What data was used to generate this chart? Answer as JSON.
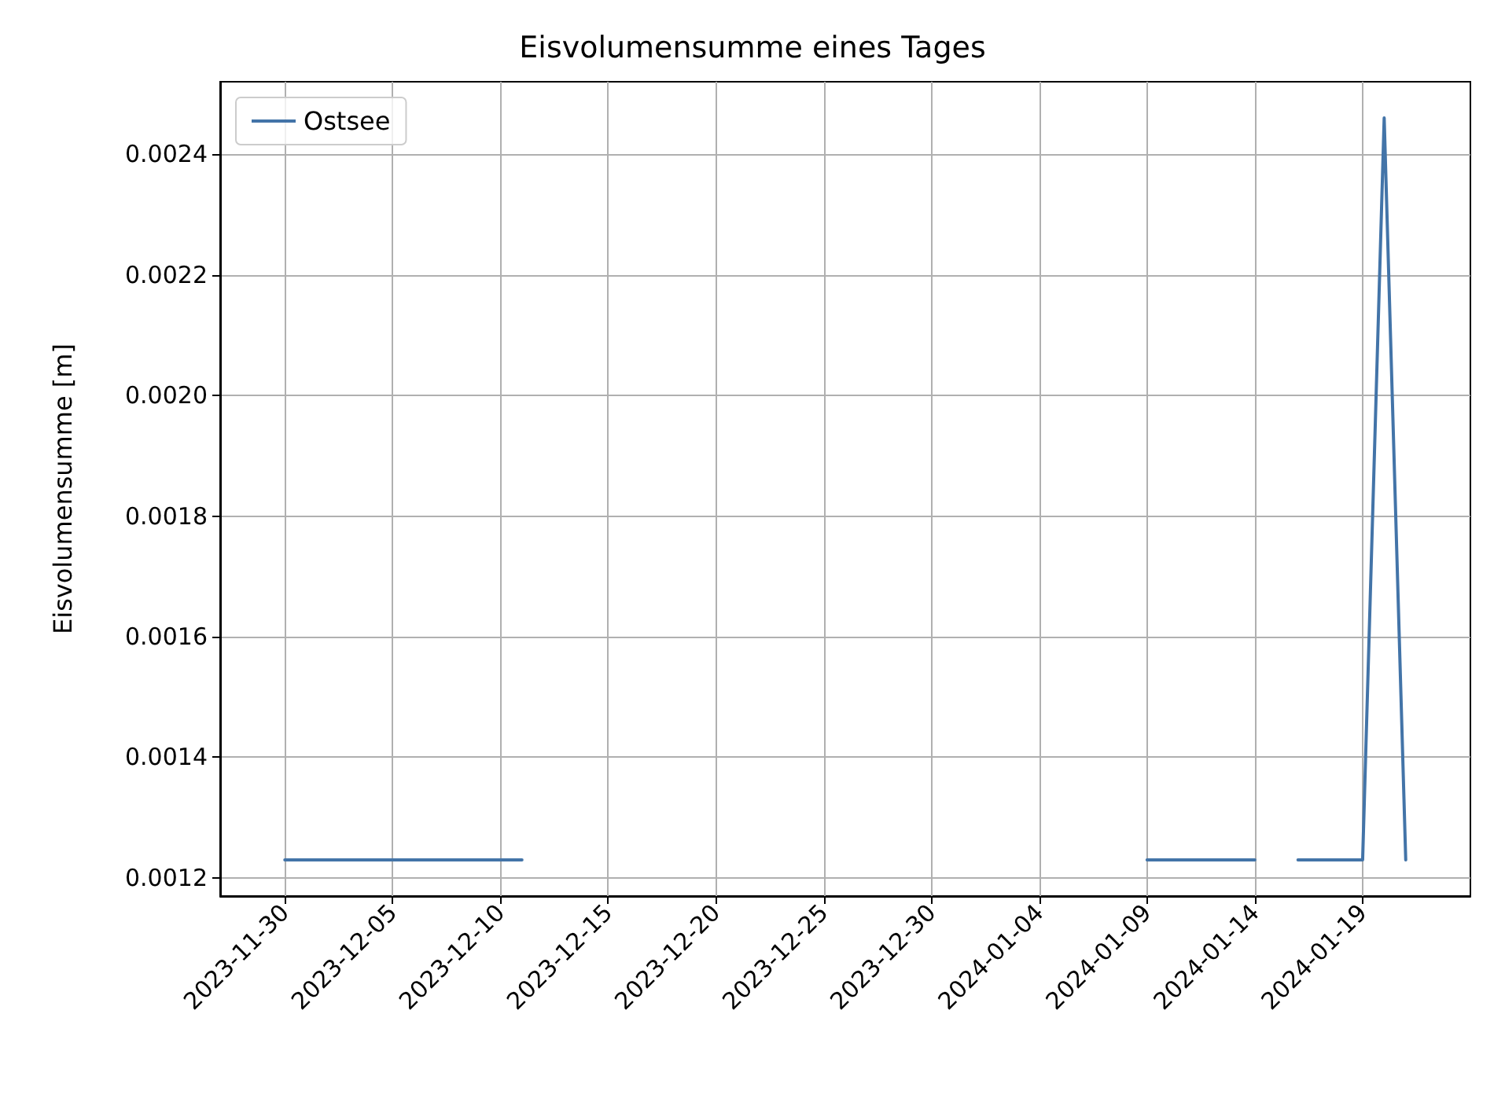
{
  "chart_data": {
    "type": "line",
    "title": "Eisvolumensumme eines Tages",
    "ylabel": "Eisvolumensumme [m]",
    "x": [
      "2023-11-30",
      "2023-12-01",
      "2023-12-02",
      "2023-12-03",
      "2023-12-04",
      "2023-12-05",
      "2023-12-06",
      "2023-12-07",
      "2023-12-08",
      "2023-12-09",
      "2023-12-10",
      "2023-12-11",
      "2023-12-12",
      "2024-01-08",
      "2024-01-09",
      "2024-01-10",
      "2024-01-11",
      "2024-01-12",
      "2024-01-13",
      "2024-01-14",
      "2024-01-15",
      "2024-01-16",
      "2024-01-17",
      "2024-01-18",
      "2024-01-19",
      "2024-01-20",
      "2024-01-21"
    ],
    "series": [
      {
        "name": "Ostsee",
        "color": "#4374a8",
        "values": [
          0.00123,
          0.00123,
          0.00123,
          0.00123,
          0.00123,
          0.00123,
          0.00123,
          0.00123,
          0.00123,
          0.00123,
          0.00123,
          0.00123,
          null,
          null,
          0.00123,
          0.00123,
          0.00123,
          0.00123,
          0.00123,
          0.00123,
          null,
          0.00123,
          0.00123,
          0.00123,
          0.00123,
          0.00246,
          0.00123
        ]
      }
    ],
    "xlim": [
      "2023-11-27",
      "2024-01-24"
    ],
    "xticks": [
      "2023-11-30",
      "2023-12-05",
      "2023-12-10",
      "2023-12-15",
      "2023-12-20",
      "2023-12-25",
      "2023-12-30",
      "2024-01-04",
      "2024-01-09",
      "2024-01-14",
      "2024-01-19"
    ],
    "ylim": [
      0.00117,
      0.00252
    ],
    "yticks": [
      {
        "value": 0.0012,
        "label": "0.0012"
      },
      {
        "value": 0.0014,
        "label": "0.0014"
      },
      {
        "value": 0.0016,
        "label": "0.0016"
      },
      {
        "value": 0.0018,
        "label": "0.0018"
      },
      {
        "value": 0.002,
        "label": "0.0020"
      },
      {
        "value": 0.0022,
        "label": "0.0022"
      },
      {
        "value": 0.0024,
        "label": "0.0024"
      }
    ],
    "grid": true,
    "legend": "top left",
    "marker": "none",
    "line_style": "solid"
  }
}
